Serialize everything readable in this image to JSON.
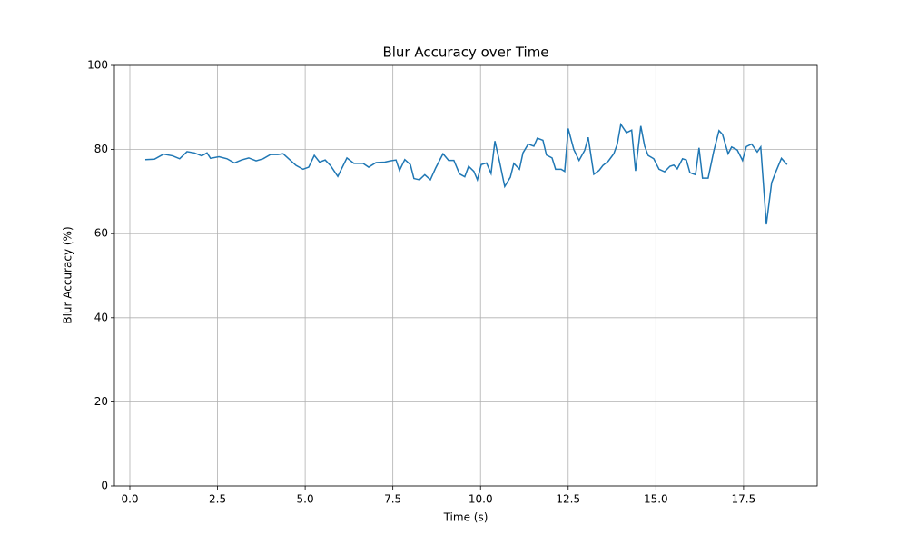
{
  "chart_data": {
    "type": "line",
    "title": "Blur Accuracy over Time",
    "x_label": "Time (s)",
    "y_label": "Blur Accuracy (%)",
    "x": [
      0.44,
      0.7,
      0.96,
      1.22,
      1.42,
      1.63,
      1.84,
      2.05,
      2.2,
      2.3,
      2.54,
      2.77,
      2.98,
      3.18,
      3.39,
      3.6,
      3.8,
      4.01,
      4.22,
      4.37,
      4.53,
      4.74,
      4.94,
      5.1,
      5.26,
      5.41,
      5.57,
      5.72,
      5.93,
      6.19,
      6.39,
      6.65,
      6.81,
      7.02,
      7.27,
      7.43,
      7.59,
      7.69,
      7.84,
      8.0,
      8.1,
      8.26,
      8.41,
      8.57,
      8.72,
      8.93,
      9.09,
      9.24,
      9.4,
      9.55,
      9.66,
      9.81,
      9.91,
      10.02,
      10.17,
      10.3,
      10.41,
      10.54,
      10.69,
      10.85,
      10.95,
      11.11,
      11.21,
      11.36,
      11.52,
      11.62,
      11.78,
      11.88,
      12.04,
      12.14,
      12.3,
      12.4,
      12.5,
      12.66,
      12.81,
      12.97,
      13.07,
      13.23,
      13.38,
      13.49,
      13.64,
      13.8,
      13.9,
      14.0,
      14.16,
      14.31,
      14.42,
      14.57,
      14.68,
      14.78,
      14.94,
      15.09,
      15.25,
      15.4,
      15.51,
      15.61,
      15.76,
      15.87,
      15.97,
      16.13,
      16.23,
      16.33,
      16.49,
      16.65,
      16.8,
      16.9,
      17.06,
      17.16,
      17.32,
      17.47,
      17.58,
      17.73,
      17.89,
      17.99,
      18.15,
      18.3,
      18.43,
      18.58,
      18.74
    ],
    "series": [
      {
        "name": "Blur Accuracy",
        "color": "#1f77b4",
        "values": [
          77.6,
          77.7,
          78.9,
          78.5,
          77.8,
          79.5,
          79.2,
          78.5,
          79.2,
          77.9,
          78.3,
          77.8,
          76.8,
          77.5,
          78.0,
          77.3,
          77.8,
          78.8,
          78.8,
          79.0,
          77.8,
          76.2,
          75.3,
          75.8,
          78.6,
          77.0,
          77.5,
          76.2,
          73.6,
          78.0,
          76.7,
          76.7,
          75.8,
          76.9,
          77.0,
          77.3,
          77.5,
          75.0,
          77.6,
          76.4,
          73.1,
          72.8,
          74.0,
          72.8,
          75.6,
          79.0,
          77.4,
          77.4,
          74.2,
          73.5,
          76.0,
          74.8,
          72.8,
          76.4,
          76.8,
          74.3,
          82.0,
          77.2,
          71.2,
          73.4,
          76.7,
          75.3,
          79.2,
          81.3,
          80.8,
          82.7,
          82.2,
          78.7,
          78.0,
          75.3,
          75.3,
          74.8,
          85.0,
          80.0,
          77.4,
          79.8,
          82.9,
          74.1,
          75.0,
          76.2,
          77.2,
          79.0,
          81.3,
          86.0,
          84.0,
          84.6,
          74.9,
          85.6,
          80.8,
          78.6,
          77.8,
          75.3,
          74.7,
          76.0,
          76.3,
          75.4,
          77.8,
          77.5,
          74.5,
          74.0,
          80.4,
          73.2,
          73.2,
          79.6,
          84.5,
          83.6,
          79.0,
          80.6,
          79.9,
          77.4,
          80.7,
          81.3,
          79.4,
          80.6,
          62.2,
          72.1,
          74.9,
          77.9,
          76.4
        ]
      }
    ],
    "xlim": [
      -0.44,
      19.6
    ],
    "ylim": [
      0,
      100
    ],
    "xticks": [
      {
        "value": 0,
        "label": "0.0"
      },
      2.5,
      {
        "value": 5,
        "label": "5.0"
      },
      7.5,
      {
        "value": 10,
        "label": "10.0"
      },
      12.5,
      {
        "value": 15,
        "label": "15.0"
      },
      17.5
    ],
    "yticks": [
      0,
      20,
      40,
      60,
      80,
      100
    ],
    "grid": true
  }
}
